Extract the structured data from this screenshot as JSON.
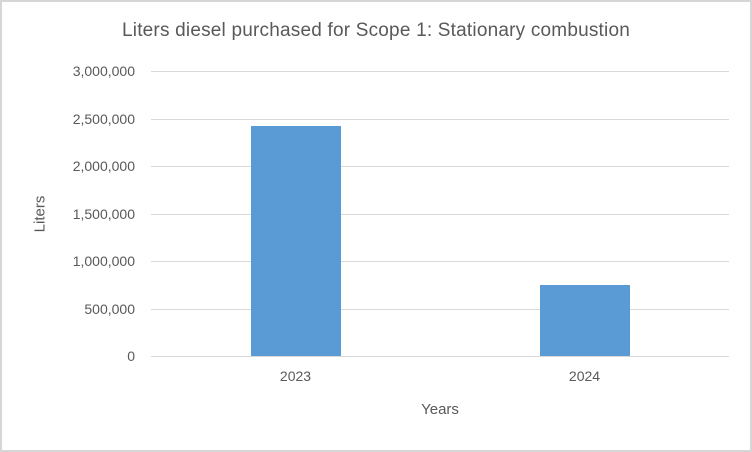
{
  "frame": {
    "background_color": "#ffffff",
    "border_color": "#d6d6d6"
  },
  "chart_data": {
    "type": "bar",
    "title": "Liters diesel purchased for Scope 1: Stationary combustion",
    "categories": [
      "2023",
      "2024"
    ],
    "values": [
      2420000,
      750000
    ],
    "xlabel": "Years",
    "ylabel": "Liters",
    "ylim": [
      0,
      3000000
    ],
    "yticks": [
      0,
      500000,
      1000000,
      1500000,
      2000000,
      2500000,
      3000000
    ],
    "ytick_labels": [
      "0",
      "500,000",
      "1,000,000",
      "1,500,000",
      "2,000,000",
      "2,500,000",
      "3,000,000"
    ],
    "grid": true,
    "legend_position": "none",
    "bar_color": "#5b9bd5",
    "gridline_color": "#d9d9d9",
    "text_color": "#595959"
  }
}
